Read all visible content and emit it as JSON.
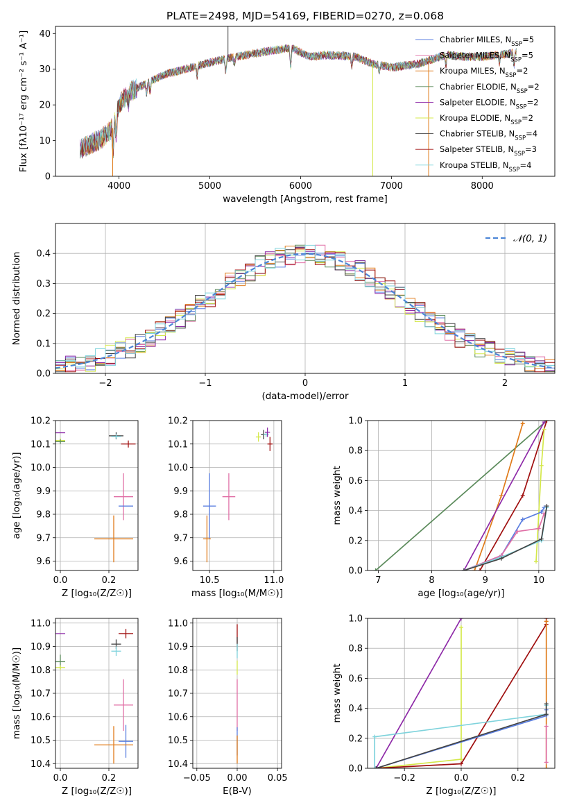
{
  "title": "PLATE=2498, MJD=54169, FIBERID=0270, z=0.068",
  "colors": [
    "#5b7fe0",
    "#e06fa6",
    "#e07b1a",
    "#5a8a5a",
    "#8e2aa8",
    "#d4e84a",
    "#444444",
    "#a01010",
    "#7fd3dc"
  ],
  "chart_data": [
    {
      "id": "spectrum",
      "type": "line",
      "xlabel": "wavelength [Angstrom, rest frame]",
      "ylabel": "Flux [fλ10⁻¹⁷ erg cm⁻² s⁻¹ A⁻¹]",
      "xlim": [
        3300,
        8800
      ],
      "ylim": [
        0,
        42
      ],
      "xticks": [
        4000,
        5000,
        6000,
        7000,
        8000
      ],
      "yticks": [
        0,
        10,
        20,
        30,
        40
      ],
      "grid": false,
      "legend_position": "top-right",
      "continuum": {
        "x": [
          3570,
          3800,
          3930,
          4000,
          4100,
          4300,
          4500,
          4800,
          5100,
          5400,
          5700,
          5900,
          6100,
          6300,
          6600,
          6800,
          7000,
          7300,
          7600,
          7800,
          8000,
          8200,
          8380
        ],
        "y": [
          7.5,
          10.5,
          13.5,
          20,
          23.5,
          26,
          28.5,
          30.5,
          32.5,
          34,
          35.3,
          36,
          33.5,
          34,
          33.5,
          31.5,
          30.5,
          31.5,
          34,
          33.5,
          33.5,
          34,
          34.8
        ]
      },
      "series": [
        {
          "name": "Chabrier MILES, N_SSP=5",
          "legend_main": "Chabrier MILES, N",
          "legend_sub": "SSP",
          "legend_tail": "=5"
        },
        {
          "name": "Salpeter MILES, N_SSP=5",
          "legend_main": "Salpeter MILES, N",
          "legend_sub": "SSP",
          "legend_tail": "=5"
        },
        {
          "name": "Kroupa MILES, N_SSP=2",
          "legend_main": "Kroupa MILES, N",
          "legend_sub": "SSP",
          "legend_tail": "=2"
        },
        {
          "name": "Chabrier ELODIE, N_SSP=2",
          "legend_main": "Chabrier ELODIE, N",
          "legend_sub": "SSP",
          "legend_tail": "=2"
        },
        {
          "name": "Salpeter ELODIE, N_SSP=2",
          "legend_main": "Salpeter ELODIE, N",
          "legend_sub": "SSP",
          "legend_tail": "=2"
        },
        {
          "name": "Kroupa ELODIE, N_SSP=2",
          "legend_main": "Kroupa ELODIE, N",
          "legend_sub": "SSP",
          "legend_tail": "=2"
        },
        {
          "name": "Chabrier STELIB, N_SSP=4",
          "legend_main": "Chabrier STELIB, N",
          "legend_sub": "SSP",
          "legend_tail": "=4"
        },
        {
          "name": "Salpeter STELIB, N_SSP=3",
          "legend_main": "Salpeter STELIB, N",
          "legend_sub": "SSP",
          "legend_tail": "=3"
        },
        {
          "name": "Kroupa STELIB, N_SSP=4",
          "legend_main": "Kroupa STELIB, N",
          "legend_sub": "SSP",
          "legend_tail": "=4"
        }
      ],
      "spikes": [
        {
          "x": 3930,
          "y": 0
        },
        {
          "x": 5200,
          "y": 42
        },
        {
          "x": 6795,
          "y": 0
        },
        {
          "x": 7410,
          "y": 0
        }
      ]
    },
    {
      "id": "residuals",
      "type": "bar",
      "xlabel": "(data-model)/error",
      "ylabel": "Normed distribution",
      "xlim": [
        -2.5,
        2.5
      ],
      "ylim": [
        0,
        0.5
      ],
      "xticks": [
        -2,
        -1,
        0,
        1,
        2
      ],
      "yticks": [
        0.0,
        0.1,
        0.2,
        0.3,
        0.4
      ],
      "grid": true,
      "legend_position": "top-right",
      "normal_label": "𝒩(0, 1)",
      "bin_width": 0.1,
      "bin_start": -2.5
    },
    {
      "id": "age-vs-Z",
      "type": "scatter",
      "xlabel": "Z [log₁₀(Z/Z☉)]",
      "ylabel": "age  [log₁₀(age/yr)]",
      "xlim": [
        -0.02,
        0.32
      ],
      "ylim": [
        9.56,
        10.2
      ],
      "xticks": [
        0.0,
        0.2
      ],
      "yticks": [
        9.6,
        9.7,
        9.8,
        9.9,
        10.0,
        10.1,
        10.2
      ],
      "grid": true,
      "points": [
        {
          "x": 0.0,
          "y": 10.148,
          "xerr": 0.02,
          "yerr": 0.0,
          "c": 4
        },
        {
          "x": 0.0,
          "y": 10.115,
          "xerr": 0.02,
          "yerr": 0.01,
          "c": 5
        },
        {
          "x": 0.0,
          "y": 10.11,
          "xerr": 0.02,
          "yerr": 0.01,
          "c": 3
        },
        {
          "x": 0.23,
          "y": 10.135,
          "xerr": 0.03,
          "yerr": 0.015,
          "c": 6
        },
        {
          "x": 0.23,
          "y": 10.132,
          "xerr": 0.02,
          "yerr": 0.01,
          "c": 8
        },
        {
          "x": 0.28,
          "y": 10.1,
          "xerr": 0.03,
          "yerr": 0.015,
          "c": 7
        },
        {
          "x": 0.26,
          "y": 9.875,
          "xerr": 0.04,
          "yerr": 0.1,
          "c": 1
        },
        {
          "x": 0.27,
          "y": 9.835,
          "xerr": 0.03,
          "yerr": 0.0,
          "c": 0
        },
        {
          "x": 0.22,
          "y": 9.695,
          "xerr": 0.08,
          "yerr": 0.1,
          "c": 2
        }
      ]
    },
    {
      "id": "age-vs-mass",
      "type": "scatter",
      "xlabel": "mass [log₁₀(M/M☉)]",
      "ylabel": "",
      "xlim": [
        10.37,
        11.06
      ],
      "ylim": [
        9.56,
        10.2
      ],
      "xticks": [
        10.5,
        11.0
      ],
      "yticks": [
        9.6,
        9.7,
        9.8,
        9.9,
        10.0,
        10.1,
        10.2
      ],
      "grid": true,
      "points": [
        {
          "x": 10.88,
          "y": 10.13,
          "xerr": 0.02,
          "yerr": 0.02,
          "c": 5
        },
        {
          "x": 10.92,
          "y": 10.14,
          "xerr": 0.02,
          "yerr": 0.02,
          "c": 6
        },
        {
          "x": 10.94,
          "y": 10.14,
          "xerr": 0.02,
          "yerr": 0.01,
          "c": 8
        },
        {
          "x": 10.95,
          "y": 10.15,
          "xerr": 0.02,
          "yerr": 0.02,
          "c": 4
        },
        {
          "x": 10.97,
          "y": 10.1,
          "xerr": 0.02,
          "yerr": 0.03,
          "c": 7
        },
        {
          "x": 10.65,
          "y": 9.875,
          "xerr": 0.05,
          "yerr": 0.1,
          "c": 1
        },
        {
          "x": 10.5,
          "y": 9.835,
          "xerr": 0.05,
          "yerr": 0.14,
          "c": 0
        },
        {
          "x": 10.48,
          "y": 9.695,
          "xerr": 0.03,
          "yerr": 0.1,
          "c": 2
        }
      ]
    },
    {
      "id": "cum-age",
      "type": "line",
      "xlabel": "age  [log₁₀(age/yr)]",
      "ylabel": "mass weight",
      "xlim": [
        6.8,
        10.3
      ],
      "ylim": [
        0,
        1
      ],
      "xticks": [
        7,
        8,
        9,
        10
      ],
      "yticks": [
        0.0,
        0.2,
        0.4,
        0.6,
        0.8,
        1.0
      ],
      "grid": true,
      "series": [
        {
          "c": 3,
          "x": [
            6.95,
            10.15
          ],
          "y": [
            0.0,
            1.0
          ]
        },
        {
          "c": 2,
          "x": [
            8.8,
            9.3,
            9.7
          ],
          "y": [
            0.0,
            0.5,
            0.98
          ]
        },
        {
          "c": 4,
          "x": [
            8.6,
            10.1
          ],
          "y": [
            0.0,
            0.99
          ]
        },
        {
          "c": 7,
          "x": [
            8.9,
            9.7,
            10.15
          ],
          "y": [
            0.0,
            0.5,
            1.0
          ]
        },
        {
          "c": 5,
          "x": [
            9.95,
            10.05,
            10.1
          ],
          "y": [
            0.06,
            0.7,
            0.94
          ]
        },
        {
          "c": 0,
          "x": [
            8.6,
            9.3,
            9.7,
            10.05,
            10.1
          ],
          "y": [
            0.0,
            0.1,
            0.34,
            0.39,
            0.42
          ]
        },
        {
          "c": 1,
          "x": [
            8.6,
            9.3,
            9.6,
            10.0,
            10.1
          ],
          "y": [
            0.0,
            0.1,
            0.26,
            0.28,
            0.38
          ]
        },
        {
          "c": 8,
          "x": [
            8.6,
            9.3,
            10.05,
            10.15
          ],
          "y": [
            0.0,
            0.09,
            0.2,
            0.42
          ]
        },
        {
          "c": 6,
          "x": [
            8.6,
            9.3,
            10.05,
            10.15
          ],
          "y": [
            0.0,
            0.08,
            0.21,
            0.43
          ]
        }
      ]
    },
    {
      "id": "mass-vs-Z",
      "type": "scatter",
      "xlabel": "Z [log₁₀(Z/Z☉)]",
      "ylabel": "mass [log₁₀(M/M☉)]",
      "xlim": [
        -0.02,
        0.32
      ],
      "ylim": [
        10.38,
        11.02
      ],
      "xticks": [
        0.0,
        0.2
      ],
      "yticks": [
        10.4,
        10.5,
        10.6,
        10.7,
        10.8,
        10.9,
        11.0
      ],
      "grid": true,
      "points": [
        {
          "x": 0.0,
          "y": 10.955,
          "xerr": 0.02,
          "yerr": 0.0,
          "c": 4
        },
        {
          "x": 0.0,
          "y": 10.835,
          "xerr": 0.02,
          "yerr": 0.03,
          "c": 3
        },
        {
          "x": 0.0,
          "y": 10.81,
          "xerr": 0.02,
          "yerr": 0.01,
          "c": 5
        },
        {
          "x": 0.23,
          "y": 10.91,
          "xerr": 0.02,
          "yerr": 0.02,
          "c": 6
        },
        {
          "x": 0.23,
          "y": 10.88,
          "xerr": 0.02,
          "yerr": 0.02,
          "c": 8
        },
        {
          "x": 0.27,
          "y": 10.955,
          "xerr": 0.03,
          "yerr": 0.02,
          "c": 7
        },
        {
          "x": 0.26,
          "y": 10.65,
          "xerr": 0.04,
          "yerr": 0.11,
          "c": 1
        },
        {
          "x": 0.27,
          "y": 10.495,
          "xerr": 0.03,
          "yerr": 0.07,
          "c": 0
        },
        {
          "x": 0.22,
          "y": 10.48,
          "xerr": 0.08,
          "yerr": 0.08,
          "c": 2
        }
      ]
    },
    {
      "id": "mass-vs-ebv",
      "type": "scatter",
      "xlabel": "E(B-V)",
      "ylabel": "",
      "xlim": [
        -0.055,
        0.055
      ],
      "ylim": [
        10.38,
        11.02
      ],
      "xticks": [
        -0.05,
        0.0,
        0.05
      ],
      "yticks": [
        10.4,
        10.5,
        10.6,
        10.7,
        10.8,
        10.9,
        11.0
      ],
      "grid": true,
      "points": [
        {
          "x": 0.0,
          "y": 10.955,
          "xerr": 0.0,
          "yerr": 0.04,
          "c": 7
        },
        {
          "x": 0.0,
          "y": 10.91,
          "xerr": 0.0,
          "yerr": 0.03,
          "c": 6
        },
        {
          "x": 0.0,
          "y": 10.88,
          "xerr": 0.0,
          "yerr": 0.03,
          "c": 8
        },
        {
          "x": 0.0,
          "y": 10.81,
          "xerr": 0.0,
          "yerr": 0.03,
          "c": 5
        },
        {
          "x": 0.0,
          "y": 10.65,
          "xerr": 0.0,
          "yerr": 0.11,
          "c": 1
        },
        {
          "x": 0.0,
          "y": 10.495,
          "xerr": 0.0,
          "yerr": 0.06,
          "c": 0
        },
        {
          "x": 0.0,
          "y": 10.46,
          "xerr": 0.0,
          "yerr": 0.06,
          "c": 2
        }
      ]
    },
    {
      "id": "cum-Z",
      "type": "line",
      "xlabel": "Z [log₁₀(Z/Z☉)]",
      "ylabel": "mass weight",
      "xlim": [
        -0.33,
        0.33
      ],
      "ylim": [
        0,
        1
      ],
      "xticks": [
        -0.2,
        0.0,
        0.2
      ],
      "yticks": [
        0.0,
        0.2,
        0.4,
        0.6,
        0.8,
        1.0
      ],
      "grid": true,
      "series": [
        {
          "c": 4,
          "x": [
            -0.3,
            0.0
          ],
          "y": [
            0.0,
            1.0
          ]
        },
        {
          "c": 5,
          "x": [
            -0.3,
            0.0,
            0.0
          ],
          "y": [
            0.0,
            0.06,
            0.94
          ]
        },
        {
          "c": 7,
          "x": [
            -0.3,
            0.0,
            0.3,
            0.3
          ],
          "y": [
            0.0,
            0.03,
            0.96,
            1.0
          ]
        },
        {
          "c": 2,
          "x": [
            0.3,
            0.3
          ],
          "y": [
            0.0,
            0.98
          ]
        },
        {
          "c": 8,
          "x": [
            -0.305,
            -0.305,
            0.3,
            0.3
          ],
          "y": [
            0.0,
            0.21,
            0.36,
            0.42
          ]
        },
        {
          "c": 0,
          "x": [
            -0.3,
            0.3,
            0.3
          ],
          "y": [
            0.0,
            0.35,
            0.39
          ]
        },
        {
          "c": 1,
          "x": [
            0.3,
            0.3
          ],
          "y": [
            0.04,
            0.28
          ]
        },
        {
          "c": 6,
          "x": [
            -0.3,
            0.3,
            0.3
          ],
          "y": [
            0.0,
            0.36,
            0.43
          ]
        }
      ]
    }
  ]
}
